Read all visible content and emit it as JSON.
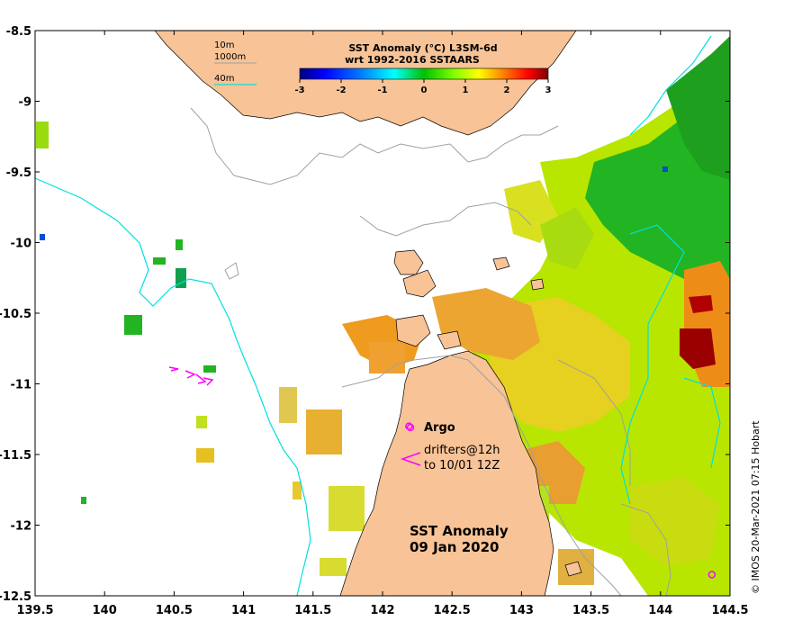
{
  "chart_data": {
    "type": "heatmap",
    "title": "SST Anomaly (°C) L3SM-6d",
    "subtitle": "wrt 1992-2016 SSTAARS",
    "xlim": [
      139.5,
      144.5
    ],
    "ylim": [
      -12.5,
      -8.5
    ],
    "x_ticks": [
      "139.5",
      "140",
      "140.5",
      "141",
      "141.5",
      "142",
      "142.5",
      "143",
      "143.5",
      "144",
      "144.5"
    ],
    "y_ticks": [
      "-8.5",
      "-9",
      "-9.5",
      "-10",
      "-10.5",
      "-11",
      "-11.5",
      "-12",
      "-12.5"
    ],
    "colorbar": {
      "min": -3,
      "max": 3,
      "ticks": [
        "-3",
        "-2",
        "-1",
        "0",
        "1",
        "2",
        "3"
      ],
      "colors": [
        "#00007f",
        "#0000ff",
        "#007fff",
        "#00ffff",
        "#00c000",
        "#7fff00",
        "#ffff00",
        "#ff7f00",
        "#ff0000",
        "#7f0000"
      ]
    },
    "depth_legend": [
      "10m",
      "1000m",
      "40m"
    ],
    "map_title_line1": "SST Anomaly",
    "map_title_line2": "09 Jan 2020",
    "argo_label": "Argo",
    "drifters_line1": "drifters@12h",
    "drifters_line2": "to 10/01 12Z",
    "credit": "© IMOS 20-Mar-2021 07:15 Hobart",
    "argo_floats": [
      {
        "lon": 142.19,
        "lat": -11.3
      },
      {
        "lon": 144.37,
        "lat": -12.35
      }
    ],
    "colors": {
      "land": "#f8c396",
      "isobath_10m": "#000000",
      "isobath_1000m": "#a0a0a0",
      "isobath_40m": "#00e6e6",
      "drifter": "#ff00ff"
    }
  }
}
